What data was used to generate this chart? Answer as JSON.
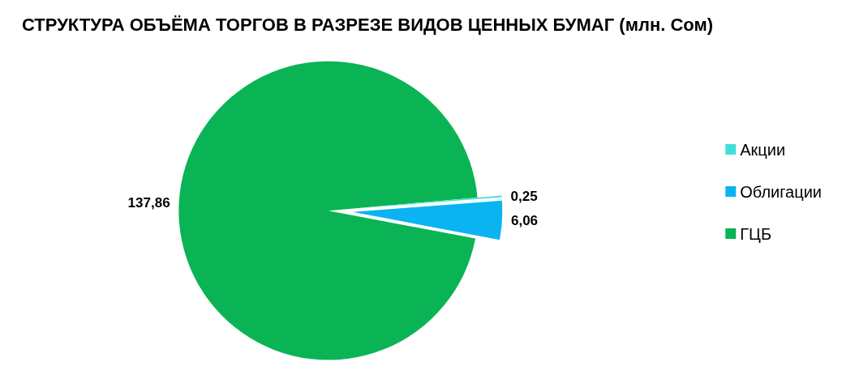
{
  "chart_data": {
    "type": "pie",
    "title": "СТРУКТУРА ОБЪЁМА ТОРГОВ В РАЗРЕЗЕ ВИДОВ ЦЕННЫХ БУМАГ (млн. Сом)",
    "categories": [
      "Акции",
      "Облигации",
      "ГЦБ"
    ],
    "values": [
      0.25,
      6.06,
      137.86
    ],
    "colors": [
      "#40e0d8",
      "#0ab4f0",
      "#0ab455"
    ],
    "value_labels": [
      "0,25",
      "6,06",
      "137,86"
    ],
    "legend": "right"
  }
}
